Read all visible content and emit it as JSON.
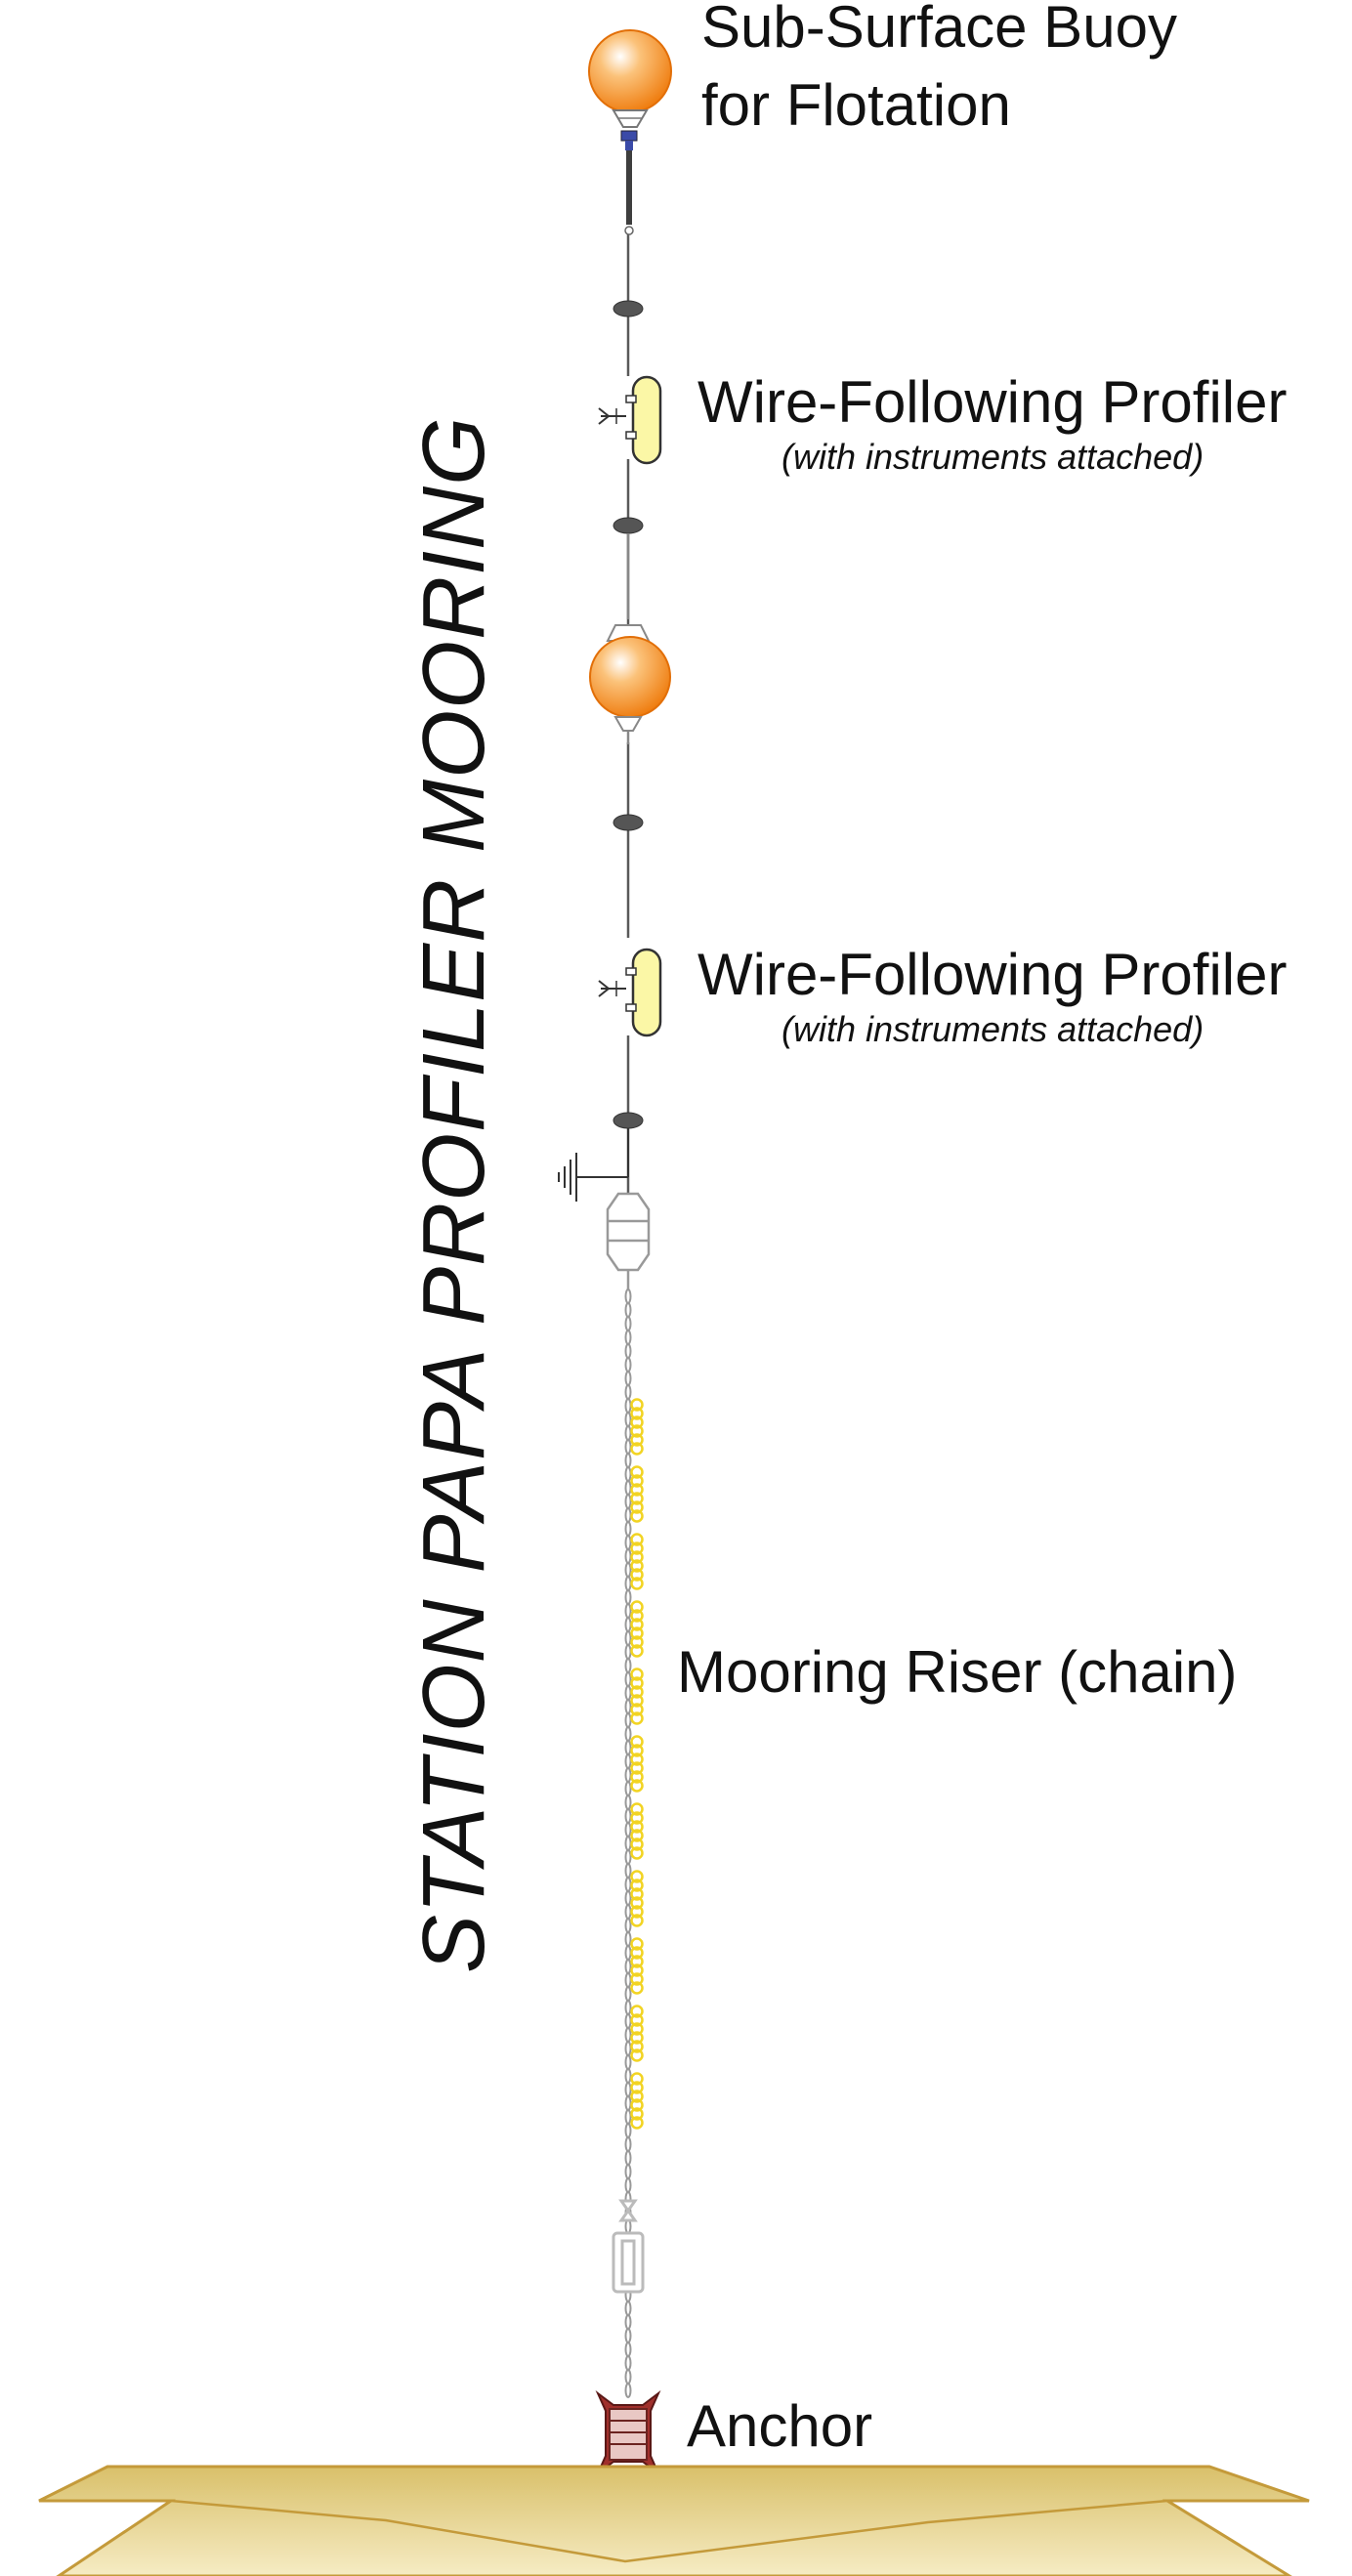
{
  "title": "STATION PAPA PROFILER MOORING",
  "labels": {
    "buoy_line1": "Sub-Surface Buoy",
    "buoy_line2": "for Flotation",
    "profiler1": "Wire-Following Profiler",
    "profiler1_note": "(with instruments attached)",
    "profiler2": "Wire-Following Profiler",
    "profiler2_note": "(with instruments attached)",
    "riser": "Mooring Riser (chain)",
    "anchor": "Anchor"
  },
  "colors": {
    "buoy": "#f08a1c",
    "profiler_body": "#fbf7a6",
    "float_beads": "#f2d423",
    "anchor": "#a0302c",
    "seafloor": "#e2cf8b",
    "line": "#555555"
  }
}
